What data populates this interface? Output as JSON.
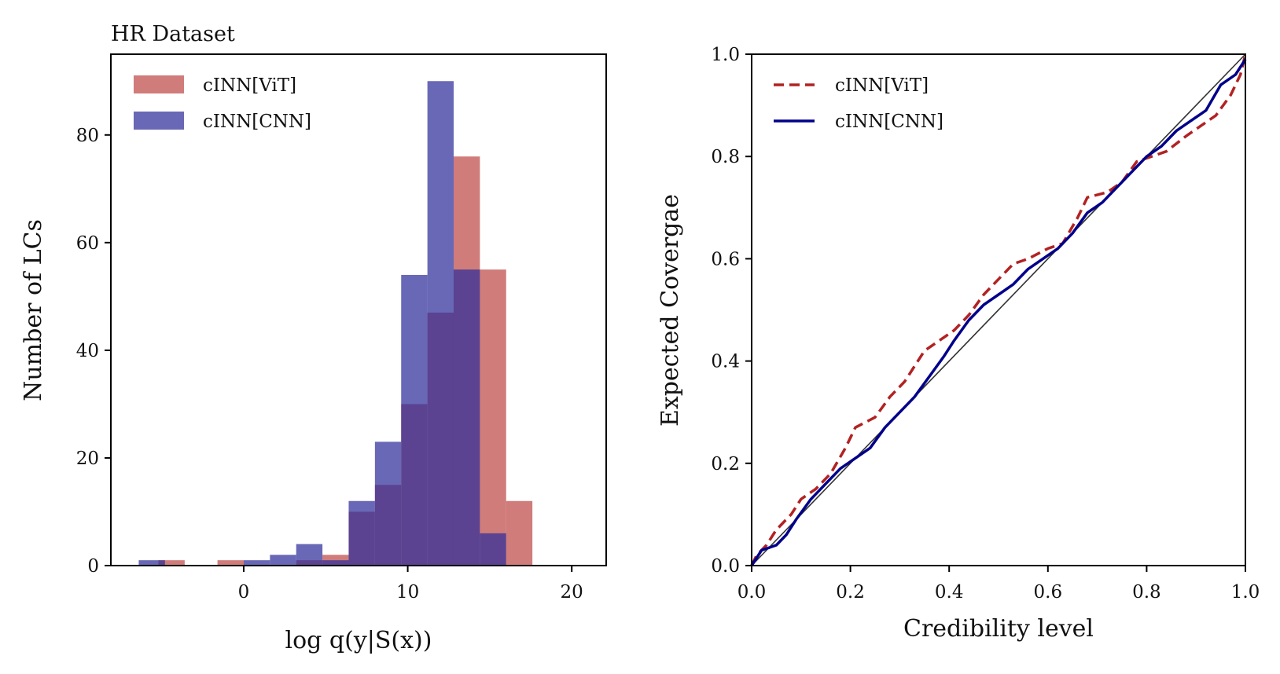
{
  "chart_data": [
    {
      "type": "bar",
      "subtype": "histogram-overlay",
      "title": "HR Dataset",
      "xlabel": "log q(y|S(x))",
      "ylabel": "Number of LCs",
      "xlim": [
        -8.1,
        22.1
      ],
      "ylim": [
        0,
        95
      ],
      "xticks": [
        0,
        10,
        20
      ],
      "yticks": [
        0,
        20,
        40,
        60,
        80
      ],
      "legend_position": "top-left",
      "series": [
        {
          "name": "cINN[ViT]",
          "color": "#c0504d",
          "opacity": 0.75,
          "bin_width": 1.6,
          "bins": [
            {
              "x0": -5.2,
              "value": 1
            },
            {
              "x0": -1.6,
              "value": 1
            },
            {
              "x0": 3.2,
              "value": 1
            },
            {
              "x0": 4.8,
              "value": 2
            },
            {
              "x0": 6.4,
              "value": 10
            },
            {
              "x0": 8.0,
              "value": 15
            },
            {
              "x0": 9.6,
              "value": 30
            },
            {
              "x0": 11.2,
              "value": 47
            },
            {
              "x0": 12.8,
              "value": 76
            },
            {
              "x0": 14.4,
              "value": 55
            },
            {
              "x0": 16.0,
              "value": 12
            }
          ]
        },
        {
          "name": "cINN[CNN]",
          "color": "#2e2e9a",
          "opacity": 0.72,
          "bin_width": 1.6,
          "bins": [
            {
              "x0": -6.4,
              "value": 1
            },
            {
              "x0": 0.0,
              "value": 1
            },
            {
              "x0": 1.6,
              "value": 2
            },
            {
              "x0": 3.2,
              "value": 4
            },
            {
              "x0": 4.8,
              "value": 1
            },
            {
              "x0": 6.4,
              "value": 12
            },
            {
              "x0": 8.0,
              "value": 23
            },
            {
              "x0": 9.6,
              "value": 54
            },
            {
              "x0": 11.2,
              "value": 90
            },
            {
              "x0": 12.8,
              "value": 55
            },
            {
              "x0": 14.4,
              "value": 6
            }
          ]
        }
      ]
    },
    {
      "type": "line",
      "title": "",
      "xlabel": "Credibility level",
      "ylabel": "Expected Covergae",
      "xlim": [
        0,
        1
      ],
      "ylim": [
        0,
        1
      ],
      "xticks": [
        "0.0",
        "0.2",
        "0.4",
        "0.6",
        "0.8",
        "1.0"
      ],
      "yticks": [
        "0.0",
        "0.2",
        "0.4",
        "0.6",
        "0.8",
        "1.0"
      ],
      "legend_position": "top-left",
      "reference_line": {
        "name": "diagonal",
        "color": "#333333",
        "points": [
          [
            0,
            0
          ],
          [
            1,
            1
          ]
        ]
      },
      "series": [
        {
          "name": "cINN[ViT]",
          "color": "#b22222",
          "dash": "dashed",
          "points": [
            [
              0,
              0
            ],
            [
              0.01,
              0.02
            ],
            [
              0.03,
              0.04
            ],
            [
              0.05,
              0.07
            ],
            [
              0.08,
              0.1
            ],
            [
              0.1,
              0.13
            ],
            [
              0.13,
              0.15
            ],
            [
              0.16,
              0.18
            ],
            [
              0.19,
              0.23
            ],
            [
              0.21,
              0.27
            ],
            [
              0.25,
              0.29
            ],
            [
              0.28,
              0.33
            ],
            [
              0.31,
              0.36
            ],
            [
              0.33,
              0.39
            ],
            [
              0.35,
              0.42
            ],
            [
              0.38,
              0.44
            ],
            [
              0.41,
              0.46
            ],
            [
              0.44,
              0.49
            ],
            [
              0.47,
              0.53
            ],
            [
              0.5,
              0.56
            ],
            [
              0.53,
              0.59
            ],
            [
              0.56,
              0.6
            ],
            [
              0.6,
              0.62
            ],
            [
              0.63,
              0.63
            ],
            [
              0.66,
              0.68
            ],
            [
              0.68,
              0.72
            ],
            [
              0.72,
              0.73
            ],
            [
              0.75,
              0.75
            ],
            [
              0.78,
              0.79
            ],
            [
              0.81,
              0.8
            ],
            [
              0.84,
              0.81
            ],
            [
              0.88,
              0.84
            ],
            [
              0.91,
              0.86
            ],
            [
              0.94,
              0.88
            ],
            [
              0.97,
              0.92
            ],
            [
              0.99,
              0.96
            ],
            [
              1.0,
              1.0
            ]
          ]
        },
        {
          "name": "cINN[CNN]",
          "color": "#00008b",
          "dash": "solid",
          "points": [
            [
              0,
              0
            ],
            [
              0.02,
              0.03
            ],
            [
              0.05,
              0.04
            ],
            [
              0.07,
              0.06
            ],
            [
              0.09,
              0.09
            ],
            [
              0.12,
              0.13
            ],
            [
              0.15,
              0.16
            ],
            [
              0.18,
              0.19
            ],
            [
              0.21,
              0.21
            ],
            [
              0.24,
              0.23
            ],
            [
              0.27,
              0.27
            ],
            [
              0.3,
              0.3
            ],
            [
              0.33,
              0.33
            ],
            [
              0.36,
              0.37
            ],
            [
              0.39,
              0.41
            ],
            [
              0.41,
              0.44
            ],
            [
              0.44,
              0.48
            ],
            [
              0.47,
              0.51
            ],
            [
              0.5,
              0.53
            ],
            [
              0.53,
              0.55
            ],
            [
              0.56,
              0.58
            ],
            [
              0.59,
              0.6
            ],
            [
              0.62,
              0.62
            ],
            [
              0.65,
              0.65
            ],
            [
              0.68,
              0.69
            ],
            [
              0.71,
              0.71
            ],
            [
              0.74,
              0.74
            ],
            [
              0.77,
              0.77
            ],
            [
              0.8,
              0.8
            ],
            [
              0.83,
              0.82
            ],
            [
              0.86,
              0.85
            ],
            [
              0.89,
              0.87
            ],
            [
              0.92,
              0.89
            ],
            [
              0.95,
              0.94
            ],
            [
              0.98,
              0.96
            ],
            [
              1.0,
              0.99
            ]
          ]
        }
      ]
    }
  ]
}
